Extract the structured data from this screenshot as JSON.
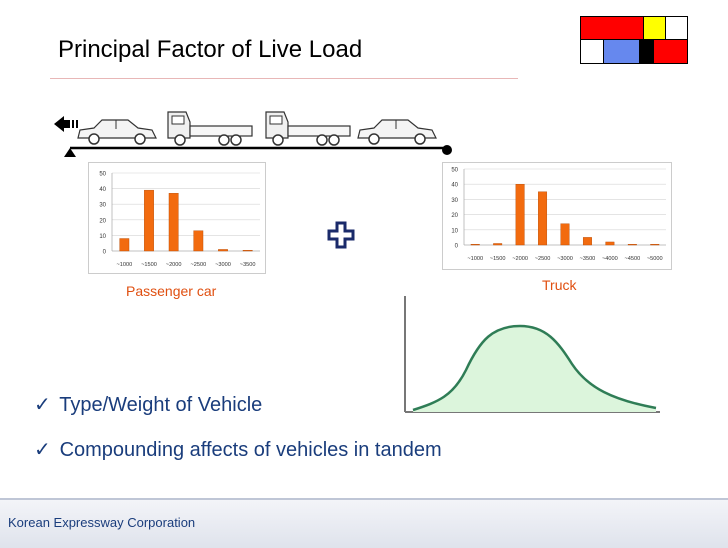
{
  "slide": {
    "title": "Principal Factor of Live Load",
    "car_caption": "Passenger  car",
    "truck_caption": "Truck",
    "bullets": [
      "Type/Weight of Vehicle",
      "Compounding affects of vehicles in tandem"
    ],
    "footer": "Korean Expressway Corporation"
  },
  "colors": {
    "accent_orange": "#f26b0f",
    "bullet_blue": "#1a3d7c",
    "curve_stroke": "#2f7d56",
    "curve_fill": "#dcf5dc",
    "mondrian_red": "#ff0000",
    "mondrian_yellow": "#ffff00",
    "mondrian_blue": "#6688ee",
    "mondrian_black": "#000000"
  },
  "icons": [
    "arrow-left-icon",
    "car-icon",
    "truck-icon",
    "plus-icon",
    "checkmark-icon"
  ],
  "chart_data": [
    {
      "type": "bar",
      "categories": [
        "~1000",
        "~1500",
        "~2000",
        "~2500",
        "~3000",
        "~3500"
      ],
      "values": [
        8,
        39,
        37,
        13,
        1,
        0
      ],
      "ylim": [
        0,
        50
      ],
      "yticks": [
        0,
        10,
        20,
        30,
        40,
        50
      ],
      "grid": true
    },
    {
      "type": "bar",
      "categories": [
        "~1000",
        "~1500",
        "~2000",
        "~2500",
        "~3000",
        "~3500",
        "~4000",
        "~4500",
        "~5000"
      ],
      "values": [
        0,
        1,
        40,
        35,
        14,
        5,
        2,
        0.5,
        0.3
      ],
      "ylim": [
        0,
        50
      ],
      "yticks": [
        0,
        10,
        20,
        30,
        40,
        50
      ],
      "grid": true
    }
  ]
}
